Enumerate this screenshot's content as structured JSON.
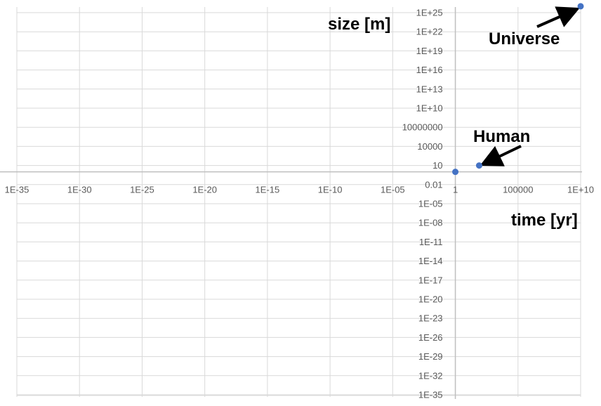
{
  "chart_data": {
    "type": "scatter",
    "xscale": "log10",
    "yscale": "log10",
    "xlim_exp": [
      -35,
      10
    ],
    "ylim_exp": [
      -35,
      25
    ],
    "x_ticks": [
      {
        "exp": -35,
        "label": "1E-35"
      },
      {
        "exp": -30,
        "label": "1E-30"
      },
      {
        "exp": -25,
        "label": "1E-25"
      },
      {
        "exp": -20,
        "label": "1E-20"
      },
      {
        "exp": -15,
        "label": "1E-15"
      },
      {
        "exp": -10,
        "label": "1E-10"
      },
      {
        "exp": -5,
        "label": "1E-05"
      },
      {
        "exp": 0,
        "label": "1"
      },
      {
        "exp": 5,
        "label": "100000"
      },
      {
        "exp": 10,
        "label": "1E+10"
      }
    ],
    "y_ticks": [
      {
        "exp": 25,
        "label": "1E+25"
      },
      {
        "exp": 22,
        "label": "1E+22"
      },
      {
        "exp": 19,
        "label": "1E+19"
      },
      {
        "exp": 16,
        "label": "1E+16"
      },
      {
        "exp": 13,
        "label": "1E+13"
      },
      {
        "exp": 10,
        "label": "1E+10"
      },
      {
        "exp": 7,
        "label": "10000000"
      },
      {
        "exp": 4,
        "label": "10000"
      },
      {
        "exp": 1,
        "label": "10"
      },
      {
        "exp": -2,
        "label": "0.01"
      },
      {
        "exp": -5,
        "label": "1E-05"
      },
      {
        "exp": -8,
        "label": "1E-08"
      },
      {
        "exp": -11,
        "label": "1E-11"
      },
      {
        "exp": -14,
        "label": "1E-14"
      },
      {
        "exp": -17,
        "label": "1E-17"
      },
      {
        "exp": -20,
        "label": "1E-20"
      },
      {
        "exp": -23,
        "label": "1E-23"
      },
      {
        "exp": -26,
        "label": "1E-26"
      },
      {
        "exp": -29,
        "label": "1E-29"
      },
      {
        "exp": -32,
        "label": "1E-32"
      },
      {
        "exp": -35,
        "label": "1E-35"
      }
    ],
    "points": [
      {
        "x_exp": 0,
        "y_exp": 0
      },
      {
        "x_exp": 1.9,
        "y_exp": 1.0
      },
      {
        "x_exp": 10.0,
        "y_exp": 26.0
      }
    ],
    "xlabel": "time [yr]",
    "ylabel": "size [m]",
    "annotations": [
      {
        "text": "Human",
        "target_point": 1
      },
      {
        "text": "Universe",
        "target_point": 2
      }
    ],
    "grid": true,
    "marker_color": "#4472C4",
    "grid_color": "#D9D9D9",
    "axis_color": "#BFBFBF"
  }
}
